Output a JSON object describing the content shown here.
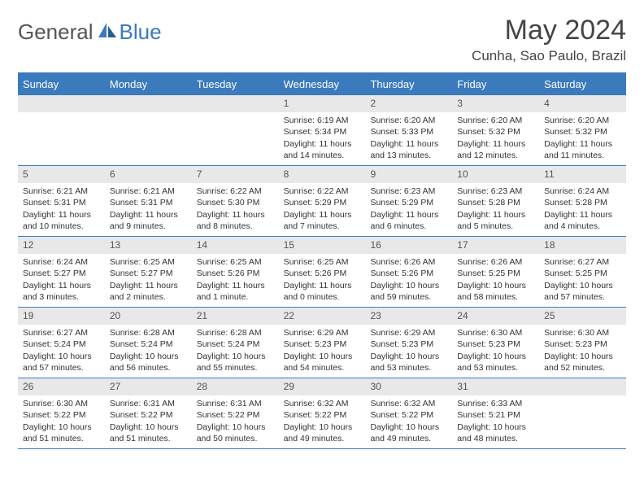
{
  "logo": {
    "general": "General",
    "blue": "Blue"
  },
  "title": "May 2024",
  "location": "Cunha, Sao Paulo, Brazil",
  "colors": {
    "brand_blue": "#3a7abd",
    "header_gray": "#e8e8e8",
    "text": "#333333",
    "logo_gray": "#555555"
  },
  "day_names": [
    "Sunday",
    "Monday",
    "Tuesday",
    "Wednesday",
    "Thursday",
    "Friday",
    "Saturday"
  ],
  "weeks": [
    [
      {
        "n": "",
        "lines": [
          "",
          "",
          "",
          ""
        ]
      },
      {
        "n": "",
        "lines": [
          "",
          "",
          "",
          ""
        ]
      },
      {
        "n": "",
        "lines": [
          "",
          "",
          "",
          ""
        ]
      },
      {
        "n": "1",
        "lines": [
          "Sunrise: 6:19 AM",
          "Sunset: 5:34 PM",
          "Daylight: 11 hours",
          "and 14 minutes."
        ]
      },
      {
        "n": "2",
        "lines": [
          "Sunrise: 6:20 AM",
          "Sunset: 5:33 PM",
          "Daylight: 11 hours",
          "and 13 minutes."
        ]
      },
      {
        "n": "3",
        "lines": [
          "Sunrise: 6:20 AM",
          "Sunset: 5:32 PM",
          "Daylight: 11 hours",
          "and 12 minutes."
        ]
      },
      {
        "n": "4",
        "lines": [
          "Sunrise: 6:20 AM",
          "Sunset: 5:32 PM",
          "Daylight: 11 hours",
          "and 11 minutes."
        ]
      }
    ],
    [
      {
        "n": "5",
        "lines": [
          "Sunrise: 6:21 AM",
          "Sunset: 5:31 PM",
          "Daylight: 11 hours",
          "and 10 minutes."
        ]
      },
      {
        "n": "6",
        "lines": [
          "Sunrise: 6:21 AM",
          "Sunset: 5:31 PM",
          "Daylight: 11 hours",
          "and 9 minutes."
        ]
      },
      {
        "n": "7",
        "lines": [
          "Sunrise: 6:22 AM",
          "Sunset: 5:30 PM",
          "Daylight: 11 hours",
          "and 8 minutes."
        ]
      },
      {
        "n": "8",
        "lines": [
          "Sunrise: 6:22 AM",
          "Sunset: 5:29 PM",
          "Daylight: 11 hours",
          "and 7 minutes."
        ]
      },
      {
        "n": "9",
        "lines": [
          "Sunrise: 6:23 AM",
          "Sunset: 5:29 PM",
          "Daylight: 11 hours",
          "and 6 minutes."
        ]
      },
      {
        "n": "10",
        "lines": [
          "Sunrise: 6:23 AM",
          "Sunset: 5:28 PM",
          "Daylight: 11 hours",
          "and 5 minutes."
        ]
      },
      {
        "n": "11",
        "lines": [
          "Sunrise: 6:24 AM",
          "Sunset: 5:28 PM",
          "Daylight: 11 hours",
          "and 4 minutes."
        ]
      }
    ],
    [
      {
        "n": "12",
        "lines": [
          "Sunrise: 6:24 AM",
          "Sunset: 5:27 PM",
          "Daylight: 11 hours",
          "and 3 minutes."
        ]
      },
      {
        "n": "13",
        "lines": [
          "Sunrise: 6:25 AM",
          "Sunset: 5:27 PM",
          "Daylight: 11 hours",
          "and 2 minutes."
        ]
      },
      {
        "n": "14",
        "lines": [
          "Sunrise: 6:25 AM",
          "Sunset: 5:26 PM",
          "Daylight: 11 hours",
          "and 1 minute."
        ]
      },
      {
        "n": "15",
        "lines": [
          "Sunrise: 6:25 AM",
          "Sunset: 5:26 PM",
          "Daylight: 11 hours",
          "and 0 minutes."
        ]
      },
      {
        "n": "16",
        "lines": [
          "Sunrise: 6:26 AM",
          "Sunset: 5:26 PM",
          "Daylight: 10 hours",
          "and 59 minutes."
        ]
      },
      {
        "n": "17",
        "lines": [
          "Sunrise: 6:26 AM",
          "Sunset: 5:25 PM",
          "Daylight: 10 hours",
          "and 58 minutes."
        ]
      },
      {
        "n": "18",
        "lines": [
          "Sunrise: 6:27 AM",
          "Sunset: 5:25 PM",
          "Daylight: 10 hours",
          "and 57 minutes."
        ]
      }
    ],
    [
      {
        "n": "19",
        "lines": [
          "Sunrise: 6:27 AM",
          "Sunset: 5:24 PM",
          "Daylight: 10 hours",
          "and 57 minutes."
        ]
      },
      {
        "n": "20",
        "lines": [
          "Sunrise: 6:28 AM",
          "Sunset: 5:24 PM",
          "Daylight: 10 hours",
          "and 56 minutes."
        ]
      },
      {
        "n": "21",
        "lines": [
          "Sunrise: 6:28 AM",
          "Sunset: 5:24 PM",
          "Daylight: 10 hours",
          "and 55 minutes."
        ]
      },
      {
        "n": "22",
        "lines": [
          "Sunrise: 6:29 AM",
          "Sunset: 5:23 PM",
          "Daylight: 10 hours",
          "and 54 minutes."
        ]
      },
      {
        "n": "23",
        "lines": [
          "Sunrise: 6:29 AM",
          "Sunset: 5:23 PM",
          "Daylight: 10 hours",
          "and 53 minutes."
        ]
      },
      {
        "n": "24",
        "lines": [
          "Sunrise: 6:30 AM",
          "Sunset: 5:23 PM",
          "Daylight: 10 hours",
          "and 53 minutes."
        ]
      },
      {
        "n": "25",
        "lines": [
          "Sunrise: 6:30 AM",
          "Sunset: 5:23 PM",
          "Daylight: 10 hours",
          "and 52 minutes."
        ]
      }
    ],
    [
      {
        "n": "26",
        "lines": [
          "Sunrise: 6:30 AM",
          "Sunset: 5:22 PM",
          "Daylight: 10 hours",
          "and 51 minutes."
        ]
      },
      {
        "n": "27",
        "lines": [
          "Sunrise: 6:31 AM",
          "Sunset: 5:22 PM",
          "Daylight: 10 hours",
          "and 51 minutes."
        ]
      },
      {
        "n": "28",
        "lines": [
          "Sunrise: 6:31 AM",
          "Sunset: 5:22 PM",
          "Daylight: 10 hours",
          "and 50 minutes."
        ]
      },
      {
        "n": "29",
        "lines": [
          "Sunrise: 6:32 AM",
          "Sunset: 5:22 PM",
          "Daylight: 10 hours",
          "and 49 minutes."
        ]
      },
      {
        "n": "30",
        "lines": [
          "Sunrise: 6:32 AM",
          "Sunset: 5:22 PM",
          "Daylight: 10 hours",
          "and 49 minutes."
        ]
      },
      {
        "n": "31",
        "lines": [
          "Sunrise: 6:33 AM",
          "Sunset: 5:21 PM",
          "Daylight: 10 hours",
          "and 48 minutes."
        ]
      },
      {
        "n": "",
        "lines": [
          "",
          "",
          "",
          ""
        ]
      }
    ]
  ]
}
